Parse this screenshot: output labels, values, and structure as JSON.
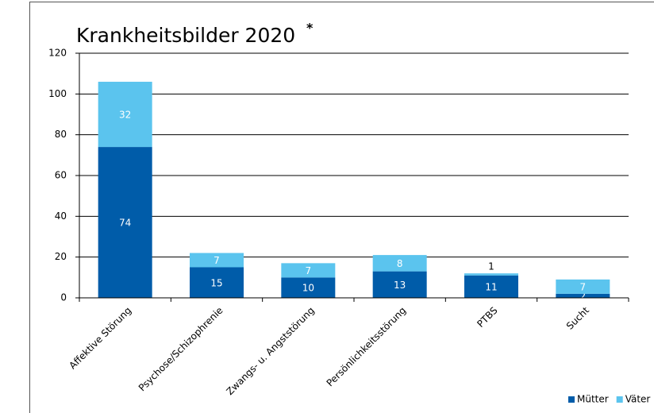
{
  "chart_data": {
    "type": "stacked-bar",
    "title": "Krankheitsbilder 2020",
    "title_note": "*",
    "categories": [
      "Affektive Störung",
      "Psychose/Schizophrenie",
      "Zwangs- u. Angststörung",
      "Persönlichkeitsstörung",
      "PTBS",
      "Sucht"
    ],
    "series": [
      {
        "name": "Mütter",
        "color": "#005ca9",
        "values": [
          74,
          15,
          10,
          13,
          11,
          2
        ]
      },
      {
        "name": "Väter",
        "color": "#5bc4ee",
        "values": [
          32,
          7,
          7,
          8,
          1,
          7
        ]
      }
    ],
    "ylim": [
      0,
      120
    ],
    "yticks": [
      0,
      20,
      40,
      60,
      80,
      100,
      120
    ],
    "grid": true,
    "legend": "bottom-right"
  }
}
